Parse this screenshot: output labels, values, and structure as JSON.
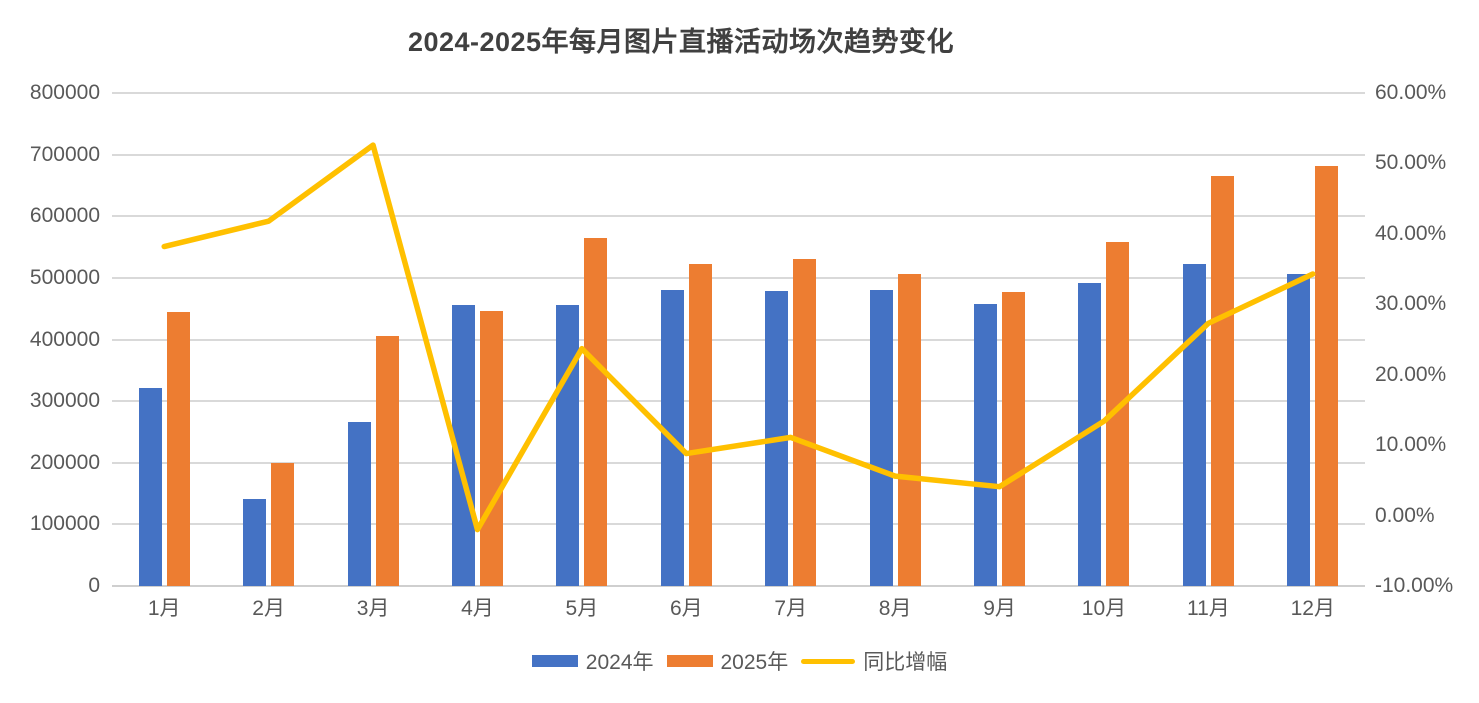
{
  "title": "2024-2025年每月图片直播活动场次趋势变化",
  "legend": [
    {
      "label": "2024年",
      "color": "#4472C4",
      "type": "bar"
    },
    {
      "label": "2025年",
      "color": "#ED7D31",
      "type": "bar"
    },
    {
      "label": "同比增幅",
      "color": "#FFC000",
      "type": "line"
    }
  ],
  "colors": {
    "bar_2024": "#4472C4",
    "bar_2025": "#ED7D31",
    "growth_line": "#FFC000",
    "gridline": "#D9D9D9",
    "axis_text": "#595959",
    "title_text": "#404040",
    "background": "#FFFFFF"
  },
  "chart_data": {
    "type": "bar",
    "subtype": "grouped-bars-with-line",
    "title": "2024-2025年每月图片直播活动场次趋势变化",
    "categories": [
      "1月",
      "2月",
      "3月",
      "4月",
      "5月",
      "6月",
      "7月",
      "8月",
      "9月",
      "10月",
      "11月",
      "12月"
    ],
    "series": [
      {
        "name": "2024年",
        "type": "bar",
        "axis": "left",
        "color": "#4472C4",
        "values": [
          322000,
          141000,
          266000,
          456000,
          456000,
          480000,
          478000,
          480000,
          458000,
          492000,
          523000,
          507000
        ]
      },
      {
        "name": "2025年",
        "type": "bar",
        "axis": "left",
        "color": "#ED7D31",
        "values": [
          445000,
          200000,
          406000,
          447000,
          564000,
          522000,
          531000,
          507000,
          477000,
          558000,
          666000,
          681000
        ]
      },
      {
        "name": "同比增幅",
        "type": "line",
        "axis": "right",
        "color": "#FFC000",
        "values_percent": [
          38.2,
          41.8,
          52.6,
          -2.0,
          23.7,
          8.8,
          11.1,
          5.6,
          4.1,
          13.4,
          27.3,
          34.3
        ]
      }
    ],
    "left_axis": {
      "min": 0,
      "max": 800000,
      "step": 100000,
      "tick_labels": [
        "800000",
        "700000",
        "600000",
        "500000",
        "400000",
        "300000",
        "200000",
        "100000",
        "0"
      ]
    },
    "right_axis": {
      "min": -10,
      "max": 60,
      "step": 10,
      "tick_labels": [
        "60.00%",
        "50.00%",
        "40.00%",
        "30.00%",
        "20.00%",
        "10.00%",
        "0.00%",
        "-10.00%"
      ]
    },
    "grid": true,
    "legend_position": "bottom",
    "xlabel": "",
    "ylabel": ""
  }
}
